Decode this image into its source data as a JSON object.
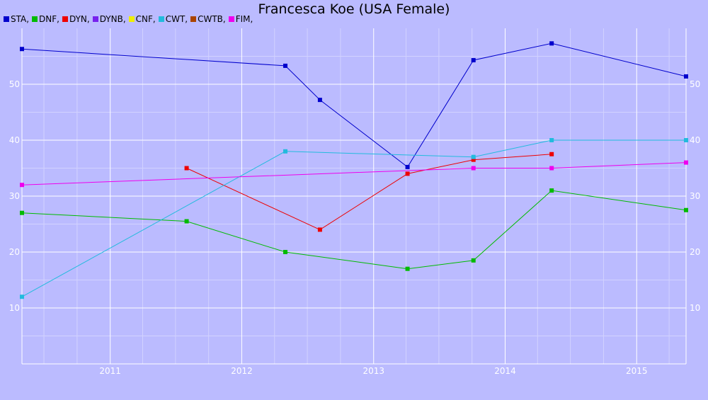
{
  "chart_data": {
    "type": "line",
    "title": "Francesca Koe (USA Female)",
    "xlabel": "",
    "ylabel": "",
    "xlim": [
      "2010-05-01",
      "2015-05-18"
    ],
    "ylim": [
      0,
      60
    ],
    "x_ticks": [
      "2011",
      "2012",
      "2013",
      "2014",
      "2015"
    ],
    "y_ticks": [
      10,
      20,
      30,
      40,
      50
    ],
    "grid": true,
    "legend": "top-left",
    "series": [
      {
        "name": "STA",
        "color": "#0000cc",
        "points": [
          {
            "x": "2010-05-01",
            "y": 56.3
          },
          {
            "x": "2012-05-01",
            "y": 53.3
          },
          {
            "x": "2012-08-05",
            "y": 47.2
          },
          {
            "x": "2013-04-05",
            "y": 35.2
          },
          {
            "x": "2013-10-05",
            "y": 54.3
          },
          {
            "x": "2014-05-10",
            "y": 57.3
          },
          {
            "x": "2015-05-18",
            "y": 51.4
          }
        ]
      },
      {
        "name": "DNF",
        "color": "#00bb00",
        "points": [
          {
            "x": "2010-05-01",
            "y": 27.0
          },
          {
            "x": "2011-08-01",
            "y": 25.5
          },
          {
            "x": "2012-05-01",
            "y": 20.0
          },
          {
            "x": "2013-04-05",
            "y": 17.0
          },
          {
            "x": "2013-10-05",
            "y": 18.5
          },
          {
            "x": "2014-05-10",
            "y": 31.0
          },
          {
            "x": "2015-05-18",
            "y": 27.5
          }
        ]
      },
      {
        "name": "DYN",
        "color": "#ee0000",
        "points": [
          {
            "x": "2011-08-01",
            "y": 35.0
          },
          {
            "x": "2012-08-05",
            "y": 24.0
          },
          {
            "x": "2013-04-05",
            "y": 34.0
          },
          {
            "x": "2013-10-05",
            "y": 36.5
          },
          {
            "x": "2014-05-10",
            "y": 37.5
          }
        ]
      },
      {
        "name": "DYNB",
        "color": "#7722ee",
        "points": []
      },
      {
        "name": "CNF",
        "color": "#eeee00",
        "points": []
      },
      {
        "name": "CWT",
        "color": "#22bbdd",
        "points": [
          {
            "x": "2010-05-01",
            "y": 12.0
          },
          {
            "x": "2012-05-01",
            "y": 38.0
          },
          {
            "x": "2013-10-05",
            "y": 37.0
          },
          {
            "x": "2014-05-10",
            "y": 40.0
          },
          {
            "x": "2015-05-18",
            "y": 40.0
          }
        ]
      },
      {
        "name": "CWTB",
        "color": "#aa4400",
        "points": []
      },
      {
        "name": "FIM",
        "color": "#ee00ee",
        "points": [
          {
            "x": "2010-05-01",
            "y": 32.0
          },
          {
            "x": "2013-10-05",
            "y": 35.0
          },
          {
            "x": "2014-05-10",
            "y": 35.0
          },
          {
            "x": "2015-05-18",
            "y": 36.0
          }
        ]
      }
    ]
  }
}
